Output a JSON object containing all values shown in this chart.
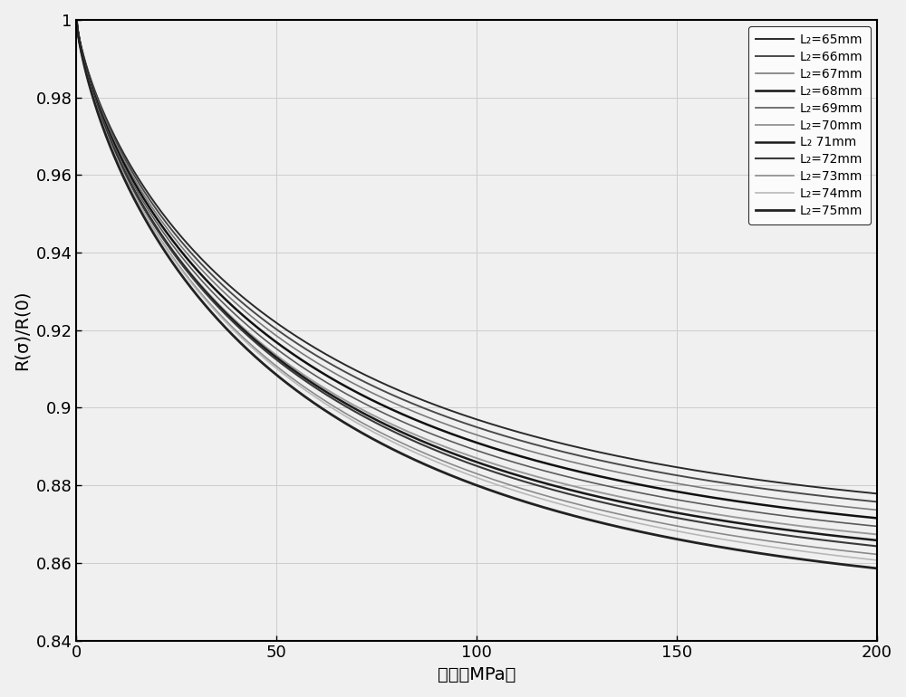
{
  "title": "",
  "xlabel": "应力（MPa）",
  "ylabel": "R(σ)/R(0)",
  "xlim": [
    0,
    200
  ],
  "ylim": [
    0.84,
    1.0
  ],
  "xticks": [
    0,
    50,
    100,
    150,
    200
  ],
  "yticks": [
    0.84,
    0.86,
    0.88,
    0.9,
    0.92,
    0.94,
    0.96,
    0.98,
    1.0
  ],
  "lengths": [
    65,
    66,
    67,
    68,
    69,
    70,
    71,
    72,
    73,
    74,
    75
  ],
  "colors": [
    "#2a2a2a",
    "#4a4a4a",
    "#7a7a7a",
    "#111111",
    "#5a5a5a",
    "#9a9a9a",
    "#1a1a1a",
    "#3a3a3a",
    "#8a8a8a",
    "#b8b8b8",
    "#222222"
  ],
  "linewidths": [
    1.4,
    1.4,
    1.2,
    1.8,
    1.2,
    1.4,
    1.8,
    1.5,
    1.2,
    1.2,
    2.0
  ],
  "legend_labels": [
    "L₂=65mm",
    "L₂=66mm",
    "L₂=67mm",
    "L₂=68mm",
    "L₂=69mm",
    "L₂=70mm",
    "L₂ 71mm",
    "L₂=72mm",
    "L₂=73mm",
    "L₂=74mm",
    "L₂=75mm"
  ],
  "grid": true,
  "background_color": "#f0f0f0",
  "grid_color": "#cccccc",
  "final_values": [
    0.867,
    0.865,
    0.863,
    0.861,
    0.859,
    0.857,
    0.855,
    0.853,
    0.851,
    0.849,
    0.847
  ],
  "mid_values": [
    0.897,
    0.895,
    0.893,
    0.891,
    0.889,
    0.887,
    0.886,
    0.885,
    0.883,
    0.882,
    0.88
  ]
}
